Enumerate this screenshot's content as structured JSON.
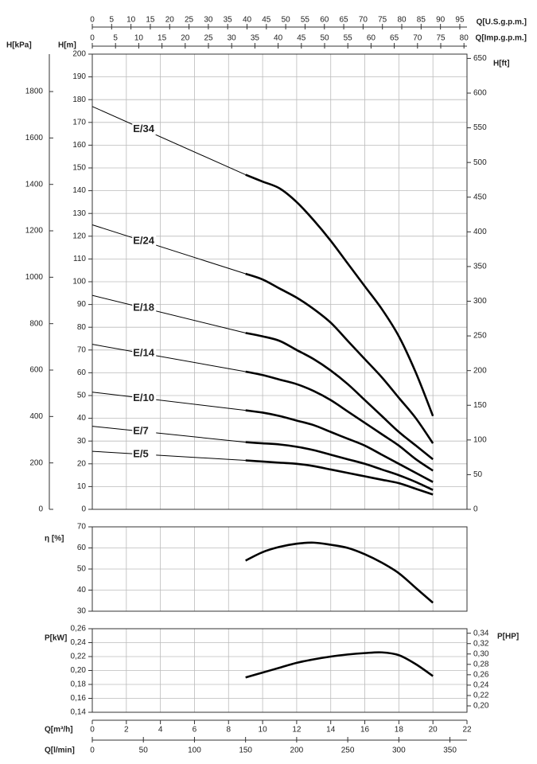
{
  "chart_data": [
    {
      "type": "line",
      "x": [
        0,
        9,
        10,
        11,
        12,
        13,
        14,
        15,
        16,
        17,
        18,
        19,
        20
      ],
      "xlim": [
        0,
        22
      ],
      "ylabel": "H[m]",
      "ylim": [
        0,
        200
      ],
      "yticks": [
        0,
        10,
        20,
        30,
        40,
        50,
        60,
        70,
        80,
        90,
        100,
        110,
        120,
        130,
        140,
        150,
        160,
        170,
        180,
        190,
        200
      ],
      "y2label": "H[ft]",
      "y2lim": [
        0,
        656.2
      ],
      "y2ticks": [
        0,
        50,
        100,
        150,
        200,
        250,
        300,
        350,
        400,
        450,
        500,
        550,
        600,
        650
      ],
      "y3label": "H[kPa]",
      "y3lim": [
        0,
        1961.3
      ],
      "y3ticks": [
        0,
        200,
        400,
        600,
        800,
        1000,
        1200,
        1400,
        1600,
        1800
      ],
      "x2label": "Q[U.S.g.p.m.]",
      "x2lim": [
        0,
        96.86
      ],
      "x2ticks": [
        0,
        5,
        10,
        15,
        20,
        25,
        30,
        35,
        40,
        45,
        50,
        55,
        60,
        65,
        70,
        75,
        80,
        85,
        90,
        95
      ],
      "x3label": "Q[Imp.g.p.m.]",
      "x3lim": [
        0,
        80.65
      ],
      "x3ticks": [
        0,
        5,
        10,
        15,
        20,
        25,
        30,
        35,
        40,
        45,
        50,
        55,
        60,
        65,
        70,
        75,
        80
      ],
      "grid": true,
      "series": [
        {
          "name": "E/34",
          "color": "#000000",
          "values": [
            177,
            147,
            144,
            141,
            135,
            127,
            118,
            108,
            98,
            88,
            76,
            60,
            41
          ]
        },
        {
          "name": "E/24",
          "color": "#000000",
          "values": [
            125,
            103.5,
            101,
            97,
            93,
            88,
            82,
            74,
            66,
            58,
            49,
            40,
            29
          ]
        },
        {
          "name": "E/18",
          "color": "#000000",
          "values": [
            94,
            77.5,
            76,
            74,
            70,
            66,
            61,
            55,
            48,
            41,
            34,
            28,
            22
          ]
        },
        {
          "name": "E/14",
          "color": "#000000",
          "values": [
            72.5,
            60.5,
            59,
            57,
            55,
            52,
            48,
            43,
            38,
            33,
            28,
            22,
            17
          ]
        },
        {
          "name": "E/10",
          "color": "#000000",
          "values": [
            51.5,
            43.5,
            42.5,
            41,
            39,
            37,
            34,
            31,
            28,
            24,
            20,
            16,
            12
          ]
        },
        {
          "name": "E/7",
          "color": "#000000",
          "values": [
            36.5,
            29.5,
            29,
            28.5,
            27.5,
            26,
            24,
            22,
            20,
            17.5,
            15,
            12,
            8.5
          ]
        },
        {
          "name": "E/5",
          "color": "#000000",
          "values": [
            25.5,
            21.5,
            21,
            20.5,
            20,
            19,
            17.5,
            16,
            14.5,
            13,
            11.5,
            9,
            6.5
          ]
        }
      ]
    },
    {
      "type": "line",
      "x": [
        9,
        10,
        11,
        12,
        13,
        14,
        15,
        16,
        17,
        18,
        19,
        20
      ],
      "xlim": [
        0,
        22
      ],
      "ylabel": "η [%]",
      "ylim": [
        30,
        70
      ],
      "yticks": [
        30,
        40,
        50,
        60,
        70
      ],
      "grid": true,
      "color": "#000000",
      "values": [
        54,
        58,
        60.5,
        62,
        62.5,
        61.5,
        60,
        57,
        53,
        48,
        41,
        34
      ]
    },
    {
      "type": "line",
      "x": [
        9,
        10,
        11,
        12,
        13,
        14,
        15,
        16,
        17,
        18,
        19,
        20
      ],
      "xlabel": "Q[m³/h]",
      "xlim": [
        0,
        22
      ],
      "xticks": [
        0,
        2,
        4,
        6,
        8,
        10,
        12,
        14,
        16,
        18,
        20,
        22
      ],
      "x2label": "Q[l/min]",
      "x2lim": [
        0,
        366.7
      ],
      "x2ticks": [
        0,
        50,
        100,
        150,
        200,
        250,
        300,
        350
      ],
      "ylabel": "P[kW]",
      "ylim": [
        0.14,
        0.26
      ],
      "yticks": [
        {
          "value": 0.14,
          "label": "0,14"
        },
        {
          "value": 0.16,
          "label": "0,16"
        },
        {
          "value": 0.18,
          "label": "0,18"
        },
        {
          "value": 0.2,
          "label": "0,20"
        },
        {
          "value": 0.22,
          "label": "0,22"
        },
        {
          "value": 0.24,
          "label": "0,24"
        },
        {
          "value": 0.26,
          "label": "0,26"
        }
      ],
      "y2label": "P[HP]",
      "y2lim": [
        0.1877,
        0.3487
      ],
      "y2ticks": [
        {
          "value": 0.2,
          "label": "0,20"
        },
        {
          "value": 0.22,
          "label": "0,22"
        },
        {
          "value": 0.24,
          "label": "0,24"
        },
        {
          "value": 0.26,
          "label": "0,26"
        },
        {
          "value": 0.28,
          "label": "0,28"
        },
        {
          "value": 0.3,
          "label": "0,30"
        },
        {
          "value": 0.32,
          "label": "0,32"
        },
        {
          "value": 0.34,
          "label": "0,34"
        }
      ],
      "grid": true,
      "color": "#000000",
      "values": [
        0.19,
        0.197,
        0.204,
        0.211,
        0.216,
        0.22,
        0.223,
        0.225,
        0.226,
        0.222,
        0.209,
        0.192
      ]
    }
  ]
}
